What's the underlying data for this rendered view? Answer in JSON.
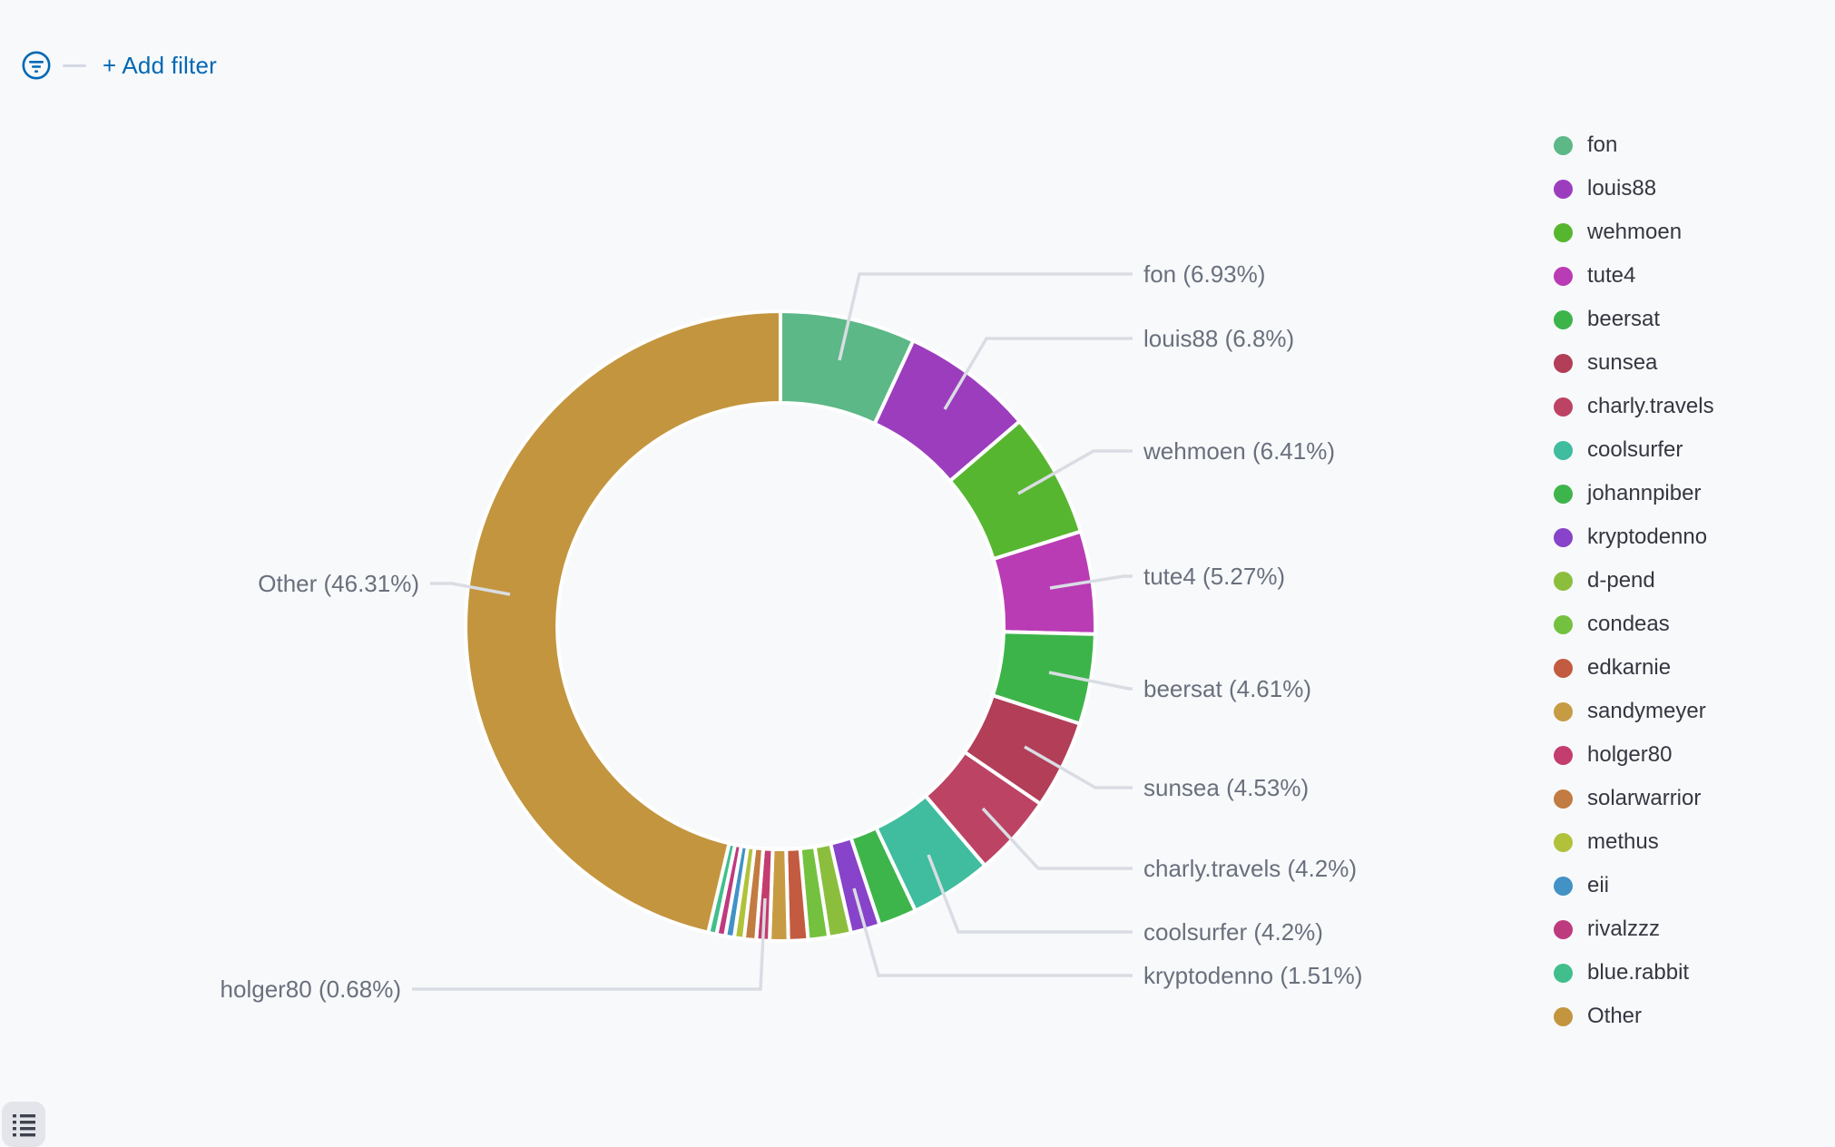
{
  "colors": {
    "background": "#F8F9FB",
    "link_blue": "#0068B4",
    "callout_text": "#69707D",
    "legend_text": "#343741",
    "leader_line": "#D9DDE3",
    "slice_border": "#FFFFFF",
    "toggle_button_bg": "#E3E5EB",
    "toggle_icon": "#3F434E"
  },
  "filter_bar": {
    "add_filter_label": "+ Add filter"
  },
  "chart_data": {
    "type": "pie",
    "subtype": "donut",
    "unit": "percent",
    "direction": "clockwise",
    "start_angle": "top",
    "hole_ratio": 0.71,
    "legend_position": "right",
    "slices": [
      {
        "name": "fon",
        "value": 6.93,
        "color": "#5CB887",
        "callout": "fon (6.93%)"
      },
      {
        "name": "louis88",
        "value": 6.8,
        "color": "#9C3DBE",
        "callout": "louis88 (6.8%)"
      },
      {
        "name": "wehmoen",
        "value": 6.41,
        "color": "#57B62F",
        "callout": "wehmoen (6.41%)"
      },
      {
        "name": "tute4",
        "value": 5.27,
        "color": "#B93CB4",
        "callout": "tute4 (5.27%)"
      },
      {
        "name": "beersat",
        "value": 4.61,
        "color": "#3CB449",
        "callout": "beersat (4.61%)"
      },
      {
        "name": "sunsea",
        "value": 4.53,
        "color": "#B23E58",
        "callout": "sunsea (4.53%)"
      },
      {
        "name": "charly.travels",
        "value": 4.2,
        "color": "#BC4363",
        "callout": "charly.travels (4.2%)"
      },
      {
        "name": "coolsurfer",
        "value": 4.2,
        "color": "#3FBD9E",
        "callout": "coolsurfer (4.2%)"
      },
      {
        "name": "johannpiber",
        "value": 1.94,
        "color": "#3DB54A",
        "callout": null,
        "estimated": true
      },
      {
        "name": "kryptodenno",
        "value": 1.51,
        "color": "#8743C9",
        "callout": "kryptodenno (1.51%)"
      },
      {
        "name": "d-pend",
        "value": 1.15,
        "color": "#8CBE3E",
        "callout": null,
        "estimated": true
      },
      {
        "name": "condeas",
        "value": 1.05,
        "color": "#74C13F",
        "callout": null,
        "estimated": true
      },
      {
        "name": "edkarnie",
        "value": 1.0,
        "color": "#C25B40",
        "callout": null,
        "estimated": true
      },
      {
        "name": "sandymeyer",
        "value": 0.95,
        "color": "#C69B43",
        "callout": null,
        "estimated": true
      },
      {
        "name": "holger80",
        "value": 0.68,
        "color": "#C33D6E",
        "callout": "holger80 (0.68%)"
      },
      {
        "name": "solarwarrior",
        "value": 0.62,
        "color": "#C27B41",
        "callout": null,
        "estimated": true
      },
      {
        "name": "methus",
        "value": 0.5,
        "color": "#B1C23A",
        "callout": null,
        "estimated": true
      },
      {
        "name": "eii",
        "value": 0.46,
        "color": "#4292C6",
        "callout": null,
        "estimated": true
      },
      {
        "name": "rivalzzz",
        "value": 0.45,
        "color": "#BE3A7E",
        "callout": null,
        "estimated": true
      },
      {
        "name": "blue.rabbit",
        "value": 0.43,
        "color": "#40BF8D",
        "callout": null,
        "estimated": true
      },
      {
        "name": "Other",
        "value": 46.31,
        "color": "#C3953F",
        "callout": "Other (46.31%)"
      }
    ]
  },
  "toolbar": {
    "legend_toggle": "toggle-legend"
  }
}
